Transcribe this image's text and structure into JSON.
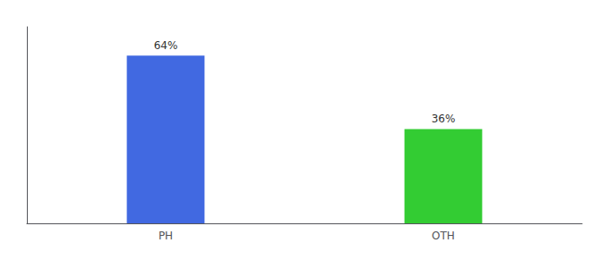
{
  "chart_data": {
    "type": "bar",
    "categories": [
      "PH",
      "OTH"
    ],
    "values": [
      64,
      36
    ],
    "value_labels": [
      "64%",
      "36%"
    ],
    "data_labels": true,
    "colors": [
      "#4169E1",
      "#33CC33"
    ],
    "ylim": [
      0,
      75
    ],
    "yticks": [],
    "tick_labels": "x",
    "grid": false
  }
}
